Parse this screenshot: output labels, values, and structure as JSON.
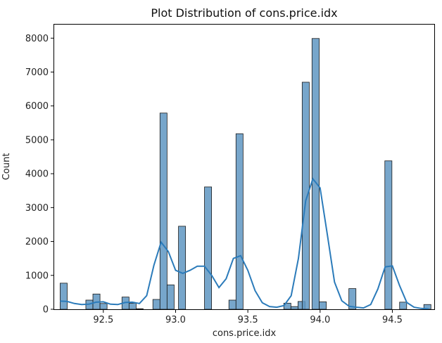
{
  "chart_data": {
    "type": "bar",
    "title": "Plot Distribution of cons.price.idx",
    "xlabel": "cons.price.idx",
    "ylabel": "Count",
    "xlim": [
      92.16,
      94.79
    ],
    "ylim": [
      0,
      8400
    ],
    "xticks": [
      92.5,
      93.0,
      93.5,
      94.0,
      94.5
    ],
    "xtick_labels": [
      "92.5",
      "93.0",
      "93.5",
      "94.0",
      "94.5"
    ],
    "yticks": [
      0,
      1000,
      2000,
      3000,
      4000,
      5000,
      6000,
      7000,
      8000
    ],
    "ytick_labels": [
      "0",
      "1000",
      "2000",
      "3000",
      "4000",
      "5000",
      "6000",
      "7000",
      "8000"
    ],
    "grid": false,
    "bar_color": "#5f96c2",
    "kde_color": "#2b7bba",
    "bars": [
      {
        "x0": 92.201,
        "x1": 92.25,
        "value": 770
      },
      {
        "x0": 92.379,
        "x1": 92.428,
        "value": 270
      },
      {
        "x0": 92.428,
        "x1": 92.477,
        "value": 450
      },
      {
        "x0": 92.477,
        "x1": 92.526,
        "value": 170
      },
      {
        "x0": 92.629,
        "x1": 92.678,
        "value": 360
      },
      {
        "x0": 92.678,
        "x1": 92.727,
        "value": 180
      },
      {
        "x0": 92.727,
        "x1": 92.776,
        "value": 15
      },
      {
        "x0": 92.843,
        "x1": 92.892,
        "value": 290
      },
      {
        "x0": 92.892,
        "x1": 92.941,
        "value": 5790
      },
      {
        "x0": 92.941,
        "x1": 92.99,
        "value": 720
      },
      {
        "x0": 93.02,
        "x1": 93.069,
        "value": 2450
      },
      {
        "x0": 93.2,
        "x1": 93.249,
        "value": 3610
      },
      {
        "x0": 93.369,
        "x1": 93.418,
        "value": 270
      },
      {
        "x0": 93.418,
        "x1": 93.467,
        "value": 5180
      },
      {
        "x0": 93.749,
        "x1": 93.798,
        "value": 180
      },
      {
        "x0": 93.798,
        "x1": 93.847,
        "value": 80
      },
      {
        "x0": 93.847,
        "x1": 93.896,
        "value": 230
      },
      {
        "x0": 93.876,
        "x1": 93.925,
        "value": 6700
      },
      {
        "x0": 93.944,
        "x1": 93.994,
        "value": 7990
      },
      {
        "x0": 93.994,
        "x1": 94.043,
        "value": 220
      },
      {
        "x0": 94.199,
        "x1": 94.248,
        "value": 610
      },
      {
        "x0": 94.448,
        "x1": 94.497,
        "value": 4380
      },
      {
        "x0": 94.55,
        "x1": 94.599,
        "value": 210
      },
      {
        "x0": 94.718,
        "x1": 94.767,
        "value": 140
      }
    ],
    "kde": [
      [
        92.2,
        240
      ],
      [
        92.25,
        230
      ],
      [
        92.3,
        170
      ],
      [
        92.35,
        140
      ],
      [
        92.4,
        150
      ],
      [
        92.45,
        210
      ],
      [
        92.5,
        220
      ],
      [
        92.55,
        150
      ],
      [
        92.6,
        140
      ],
      [
        92.65,
        200
      ],
      [
        92.7,
        210
      ],
      [
        92.75,
        170
      ],
      [
        92.8,
        400
      ],
      [
        92.85,
        1300
      ],
      [
        92.9,
        1980
      ],
      [
        92.95,
        1700
      ],
      [
        93.0,
        1150
      ],
      [
        93.05,
        1060
      ],
      [
        93.1,
        1150
      ],
      [
        93.15,
        1270
      ],
      [
        93.2,
        1270
      ],
      [
        93.25,
        1000
      ],
      [
        93.3,
        640
      ],
      [
        93.35,
        900
      ],
      [
        93.4,
        1500
      ],
      [
        93.45,
        1580
      ],
      [
        93.5,
        1150
      ],
      [
        93.55,
        550
      ],
      [
        93.6,
        190
      ],
      [
        93.65,
        80
      ],
      [
        93.7,
        60
      ],
      [
        93.75,
        110
      ],
      [
        93.8,
        400
      ],
      [
        93.85,
        1500
      ],
      [
        93.9,
        3200
      ],
      [
        93.95,
        3850
      ],
      [
        94.0,
        3580
      ],
      [
        94.05,
        2200
      ],
      [
        94.1,
        800
      ],
      [
        94.15,
        250
      ],
      [
        94.2,
        90
      ],
      [
        94.25,
        60
      ],
      [
        94.3,
        40
      ],
      [
        94.35,
        140
      ],
      [
        94.4,
        600
      ],
      [
        94.45,
        1250
      ],
      [
        94.5,
        1280
      ],
      [
        94.55,
        700
      ],
      [
        94.6,
        200
      ],
      [
        94.65,
        60
      ],
      [
        94.7,
        25
      ],
      [
        94.75,
        10
      ]
    ]
  }
}
